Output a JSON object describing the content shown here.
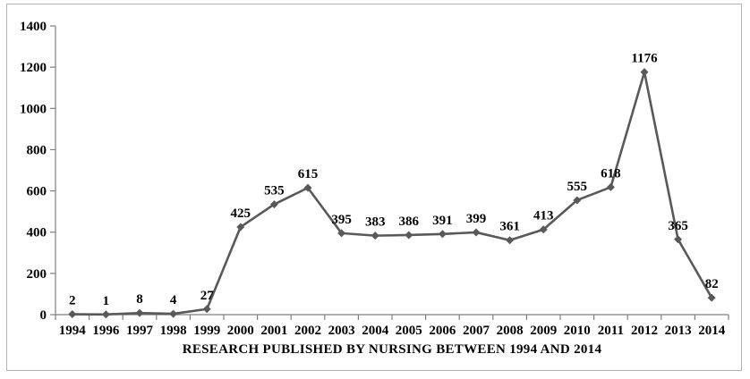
{
  "chart_data": {
    "type": "line",
    "title": "RESEARCH PUBLISHED BY NURSING BETWEEN 1994 AND 2014",
    "xlabel": "",
    "ylabel": "",
    "categories": [
      "1994",
      "1996",
      "1997",
      "1998",
      "1999",
      "2000",
      "2001",
      "2002",
      "2003",
      "2004",
      "2005",
      "2006",
      "2007",
      "2008",
      "2009",
      "2010",
      "2011",
      "2012",
      "2013",
      "2014"
    ],
    "values": [
      2,
      1,
      8,
      4,
      27,
      425,
      535,
      615,
      395,
      383,
      386,
      391,
      399,
      361,
      413,
      555,
      618,
      1176,
      365,
      82
    ],
    "series_name": "Research published by nursing",
    "ylim": [
      0,
      1400
    ],
    "yticks": [
      0,
      200,
      400,
      600,
      800,
      1000,
      1200,
      1400
    ],
    "grid": false,
    "legend_position": "none",
    "marker": "diamond",
    "data_labels_shown": true,
    "colors": {
      "line": "#595959",
      "marker": "#595959",
      "axis": "#7f7f7f",
      "text": "#000000",
      "frame_border": "#b3b3b3",
      "background": "#ffffff"
    }
  }
}
